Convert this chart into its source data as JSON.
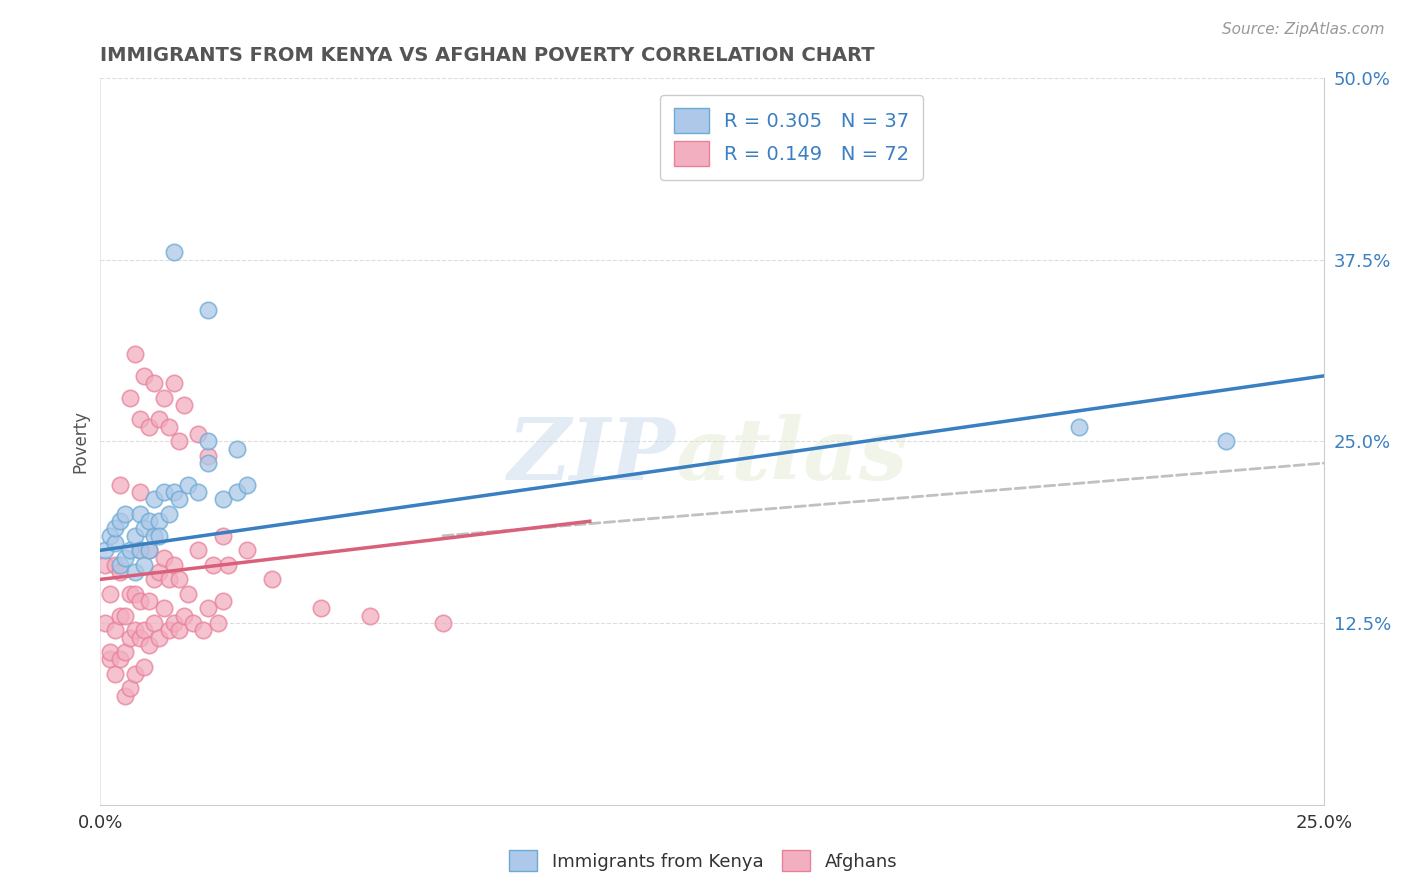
{
  "title": "IMMIGRANTS FROM KENYA VS AFGHAN POVERTY CORRELATION CHART",
  "source_text": "Source: ZipAtlas.com",
  "ylabel": "Poverty",
  "watermark_zip": "ZIP",
  "watermark_atlas": "atlas",
  "xlim": [
    0.0,
    0.25
  ],
  "ylim": [
    0.0,
    0.5
  ],
  "ytick_labels": [
    "12.5%",
    "25.0%",
    "37.5%",
    "50.0%"
  ],
  "ytick_vals": [
    0.125,
    0.25,
    0.375,
    0.5
  ],
  "legend_R1": "R = 0.305",
  "legend_N1": "N = 37",
  "legend_R2": "R = 0.149",
  "legend_N2": "N = 72",
  "color_kenya_fill": "#adc8e8",
  "color_afghan_fill": "#f2afc0",
  "color_kenya_edge": "#6aaad4",
  "color_afghan_edge": "#e8809a",
  "color_kenya_line": "#3a7fc1",
  "color_afghan_line": "#d9607a",
  "color_dashed": "#c0c0c0",
  "title_color": "#555555",
  "source_color": "#999999",
  "kenya_x": [
    0.001,
    0.002,
    0.003,
    0.003,
    0.004,
    0.004,
    0.005,
    0.005,
    0.006,
    0.007,
    0.007,
    0.008,
    0.008,
    0.009,
    0.009,
    0.01,
    0.01,
    0.011,
    0.011,
    0.012,
    0.012,
    0.013,
    0.014,
    0.015,
    0.016,
    0.018,
    0.02,
    0.022,
    0.025,
    0.028,
    0.015,
    0.022,
    0.028,
    0.03,
    0.022,
    0.2,
    0.23
  ],
  "kenya_y": [
    0.175,
    0.185,
    0.18,
    0.19,
    0.165,
    0.195,
    0.17,
    0.2,
    0.175,
    0.16,
    0.185,
    0.175,
    0.2,
    0.165,
    0.19,
    0.175,
    0.195,
    0.185,
    0.21,
    0.195,
    0.185,
    0.215,
    0.2,
    0.215,
    0.21,
    0.22,
    0.215,
    0.235,
    0.21,
    0.215,
    0.38,
    0.34,
    0.245,
    0.22,
    0.25,
    0.26,
    0.25
  ],
  "afghan_x": [
    0.001,
    0.001,
    0.002,
    0.002,
    0.002,
    0.003,
    0.003,
    0.003,
    0.004,
    0.004,
    0.004,
    0.005,
    0.005,
    0.005,
    0.006,
    0.006,
    0.006,
    0.007,
    0.007,
    0.007,
    0.008,
    0.008,
    0.008,
    0.009,
    0.009,
    0.01,
    0.01,
    0.01,
    0.011,
    0.011,
    0.012,
    0.012,
    0.013,
    0.013,
    0.014,
    0.014,
    0.015,
    0.015,
    0.016,
    0.016,
    0.017,
    0.018,
    0.019,
    0.02,
    0.021,
    0.022,
    0.023,
    0.024,
    0.025,
    0.026,
    0.006,
    0.007,
    0.008,
    0.009,
    0.01,
    0.011,
    0.012,
    0.013,
    0.014,
    0.015,
    0.016,
    0.017,
    0.02,
    0.022,
    0.025,
    0.03,
    0.035,
    0.045,
    0.055,
    0.07,
    0.004,
    0.008
  ],
  "afghan_y": [
    0.165,
    0.125,
    0.1,
    0.145,
    0.105,
    0.165,
    0.12,
    0.09,
    0.13,
    0.1,
    0.16,
    0.13,
    0.105,
    0.075,
    0.115,
    0.145,
    0.08,
    0.12,
    0.145,
    0.09,
    0.115,
    0.14,
    0.175,
    0.12,
    0.095,
    0.14,
    0.11,
    0.175,
    0.125,
    0.155,
    0.115,
    0.16,
    0.135,
    0.17,
    0.12,
    0.155,
    0.125,
    0.165,
    0.12,
    0.155,
    0.13,
    0.145,
    0.125,
    0.175,
    0.12,
    0.135,
    0.165,
    0.125,
    0.14,
    0.165,
    0.28,
    0.31,
    0.265,
    0.295,
    0.26,
    0.29,
    0.265,
    0.28,
    0.26,
    0.29,
    0.25,
    0.275,
    0.255,
    0.24,
    0.185,
    0.175,
    0.155,
    0.135,
    0.13,
    0.125,
    0.22,
    0.215
  ],
  "kenya_line_x0": 0.0,
  "kenya_line_x1": 0.25,
  "kenya_line_y0": 0.175,
  "kenya_line_y1": 0.295,
  "afghan_line_x0": 0.0,
  "afghan_line_x1": 0.1,
  "afghan_line_y0": 0.155,
  "afghan_line_y1": 0.195,
  "dashed_line_x0": 0.07,
  "dashed_line_x1": 0.25,
  "dashed_line_y0": 0.185,
  "dashed_line_y1": 0.235
}
